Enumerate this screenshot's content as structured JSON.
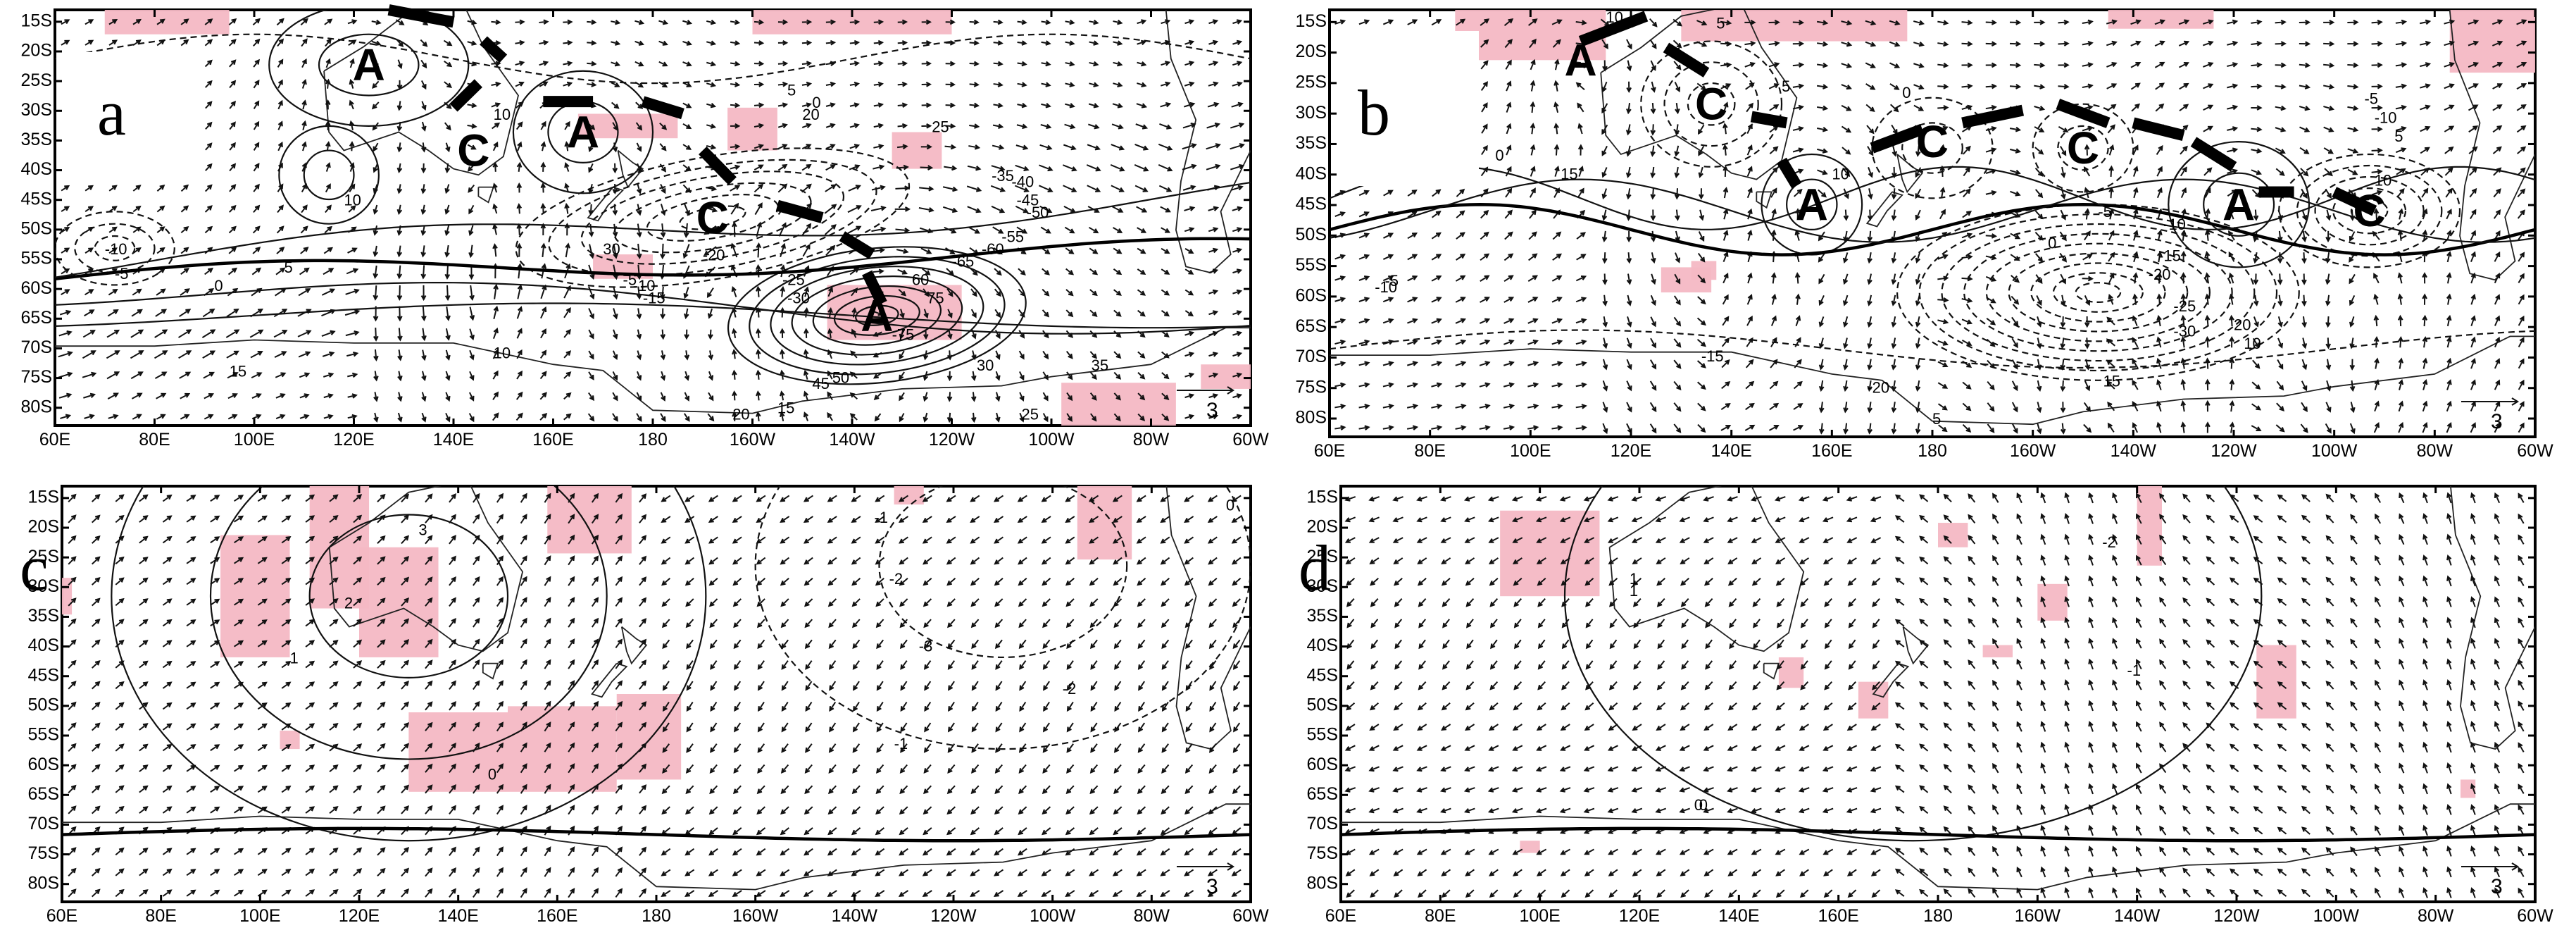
{
  "lon_labels": [
    "60E",
    "80E",
    "100E",
    "120E",
    "140E",
    "160E",
    "180",
    "160W",
    "140W",
    "120W",
    "100W",
    "80W",
    "60W"
  ],
  "lat_labels_top": [
    "15S",
    "20S",
    "25S",
    "30S",
    "35S",
    "40S",
    "45S",
    "50S",
    "55S",
    "60S",
    "65S",
    "70S",
    "75S",
    "80S"
  ],
  "lat_labels_bottom": [
    "15S",
    "20S",
    "25S",
    "30S",
    "35S",
    "40S",
    "45S",
    "50S",
    "55S",
    "60S",
    "65S",
    "70S",
    "75S",
    "80S"
  ],
  "reference_vector_label": "3",
  "panels": [
    {
      "letter": "a",
      "centers": [
        {
          "label": "A",
          "lon": 123,
          "lat": -21
        },
        {
          "label": "C",
          "lon": 144,
          "lat": -35
        },
        {
          "label": "A",
          "lon": 166,
          "lat": -32
        },
        {
          "label": "C",
          "lon": 192,
          "lat": -46
        },
        {
          "label": "A",
          "lon": 225,
          "lat": -62
        }
      ],
      "contour_labels": [
        "10",
        "10",
        "10",
        "5",
        "0",
        "-5",
        "-10",
        "15",
        "10",
        "5",
        "0",
        "20",
        "25",
        "30",
        "-5",
        "-10",
        "-15",
        "-20",
        "-25",
        "-30",
        "-35",
        "-40",
        "-45",
        "-50",
        "-55",
        "-60",
        "-65",
        "-75",
        "60",
        "75",
        "45",
        "50",
        "15",
        "20",
        "25",
        "30",
        "35"
      ]
    },
    {
      "letter": "b",
      "centers": [
        {
          "label": "A",
          "lon": 110,
          "lat": -20
        },
        {
          "label": "C",
          "lon": 136,
          "lat": -27
        },
        {
          "label": "A",
          "lon": 156,
          "lat": -43
        },
        {
          "label": "C",
          "lon": 180,
          "lat": -33
        },
        {
          "label": "C",
          "lon": 210,
          "lat": -34
        },
        {
          "label": "A",
          "lon": 241,
          "lat": -43
        },
        {
          "label": "C",
          "lon": 267,
          "lat": -44
        }
      ],
      "contour_labels": [
        "10",
        "5",
        "0",
        "-5",
        "-10",
        "15",
        "10",
        "5",
        "0",
        "-5",
        "-10",
        "-15",
        "-20",
        "-25",
        "-30",
        "20",
        "15",
        "10",
        "5",
        "0",
        "-5",
        "-10",
        "-15",
        "-20",
        "10",
        "5"
      ]
    },
    {
      "letter": "c",
      "contour_labels": [
        "3",
        "2",
        "1",
        "0",
        "-1",
        "-2",
        "-3",
        "-1",
        "-2",
        "0"
      ]
    },
    {
      "letter": "d",
      "contour_labels": [
        "1",
        "0",
        "-1",
        "-2",
        "1",
        "0"
      ]
    }
  ]
}
